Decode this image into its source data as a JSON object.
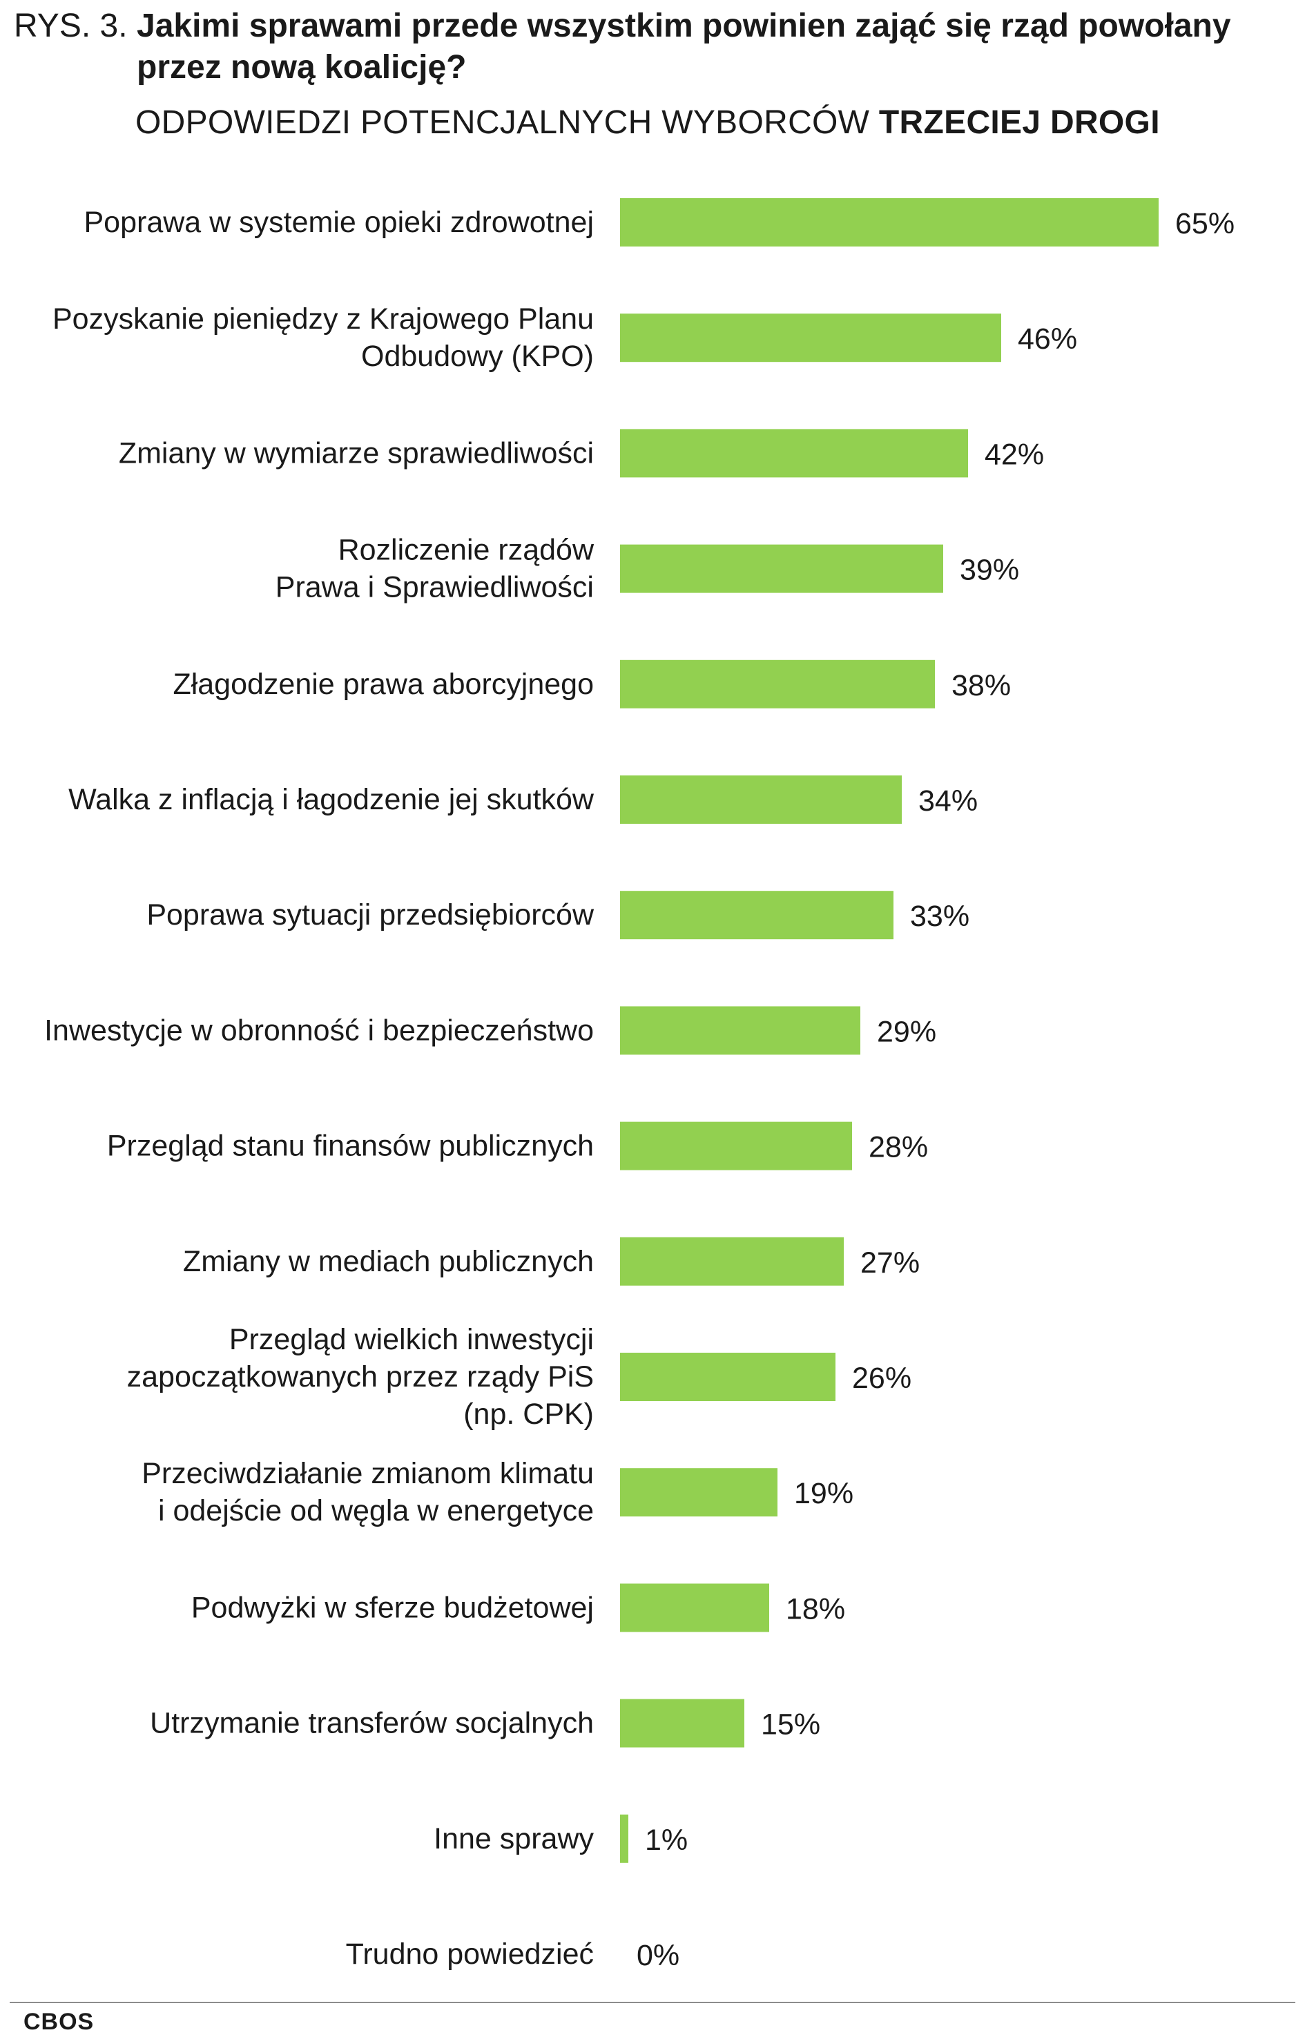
{
  "header": {
    "figure_label": "RYS. 3.",
    "title": "Jakimi sprawami przede wszystkim powinien zająć się rząd powołany przez nową koalicję?",
    "subtitle_prefix": "ODPOWIEDZI POTENCJALNYCH WYBORCÓW ",
    "subtitle_emphasis": "TRZECIEJ DROGI"
  },
  "footer": {
    "source": "CBOS"
  },
  "chart_data": {
    "type": "bar",
    "orientation": "horizontal",
    "categories": [
      [
        "Poprawa w systemie opieki zdrowotnej"
      ],
      [
        "Pozyskanie pieniędzy z Krajowego Planu",
        "Odbudowy (KPO)"
      ],
      [
        "Zmiany w wymiarze sprawiedliwości"
      ],
      [
        "Rozliczenie rządów",
        "Prawa i Sprawiedliwości"
      ],
      [
        "Złagodzenie prawa aborcyjnego"
      ],
      [
        "Walka z inflacją i łagodzenie jej skutków"
      ],
      [
        "Poprawa sytuacji przedsiębiorców"
      ],
      [
        "Inwestycje w obronność i bezpieczeństwo"
      ],
      [
        "Przegląd stanu finansów publicznych"
      ],
      [
        "Zmiany w mediach publicznych"
      ],
      [
        "Przegląd wielkich inwestycji",
        "zapoczątkowanych przez rządy PiS",
        "(np. CPK)"
      ],
      [
        "Przeciwdziałanie zmianom klimatu",
        "i odejście od węgla w energetyce"
      ],
      [
        "Podwyżki w sferze budżetowej"
      ],
      [
        "Utrzymanie transferów socjalnych"
      ],
      [
        "Inne sprawy"
      ],
      [
        "Trudno powiedzieć"
      ]
    ],
    "values": [
      65,
      46,
      42,
      39,
      38,
      34,
      33,
      29,
      28,
      27,
      26,
      19,
      18,
      15,
      1,
      0
    ],
    "value_labels": [
      "65%",
      "46%",
      "42%",
      "39%",
      "38%",
      "34%",
      "33%",
      "29%",
      "28%",
      "27%",
      "26%",
      "19%",
      "18%",
      "15%",
      "1%",
      "0%"
    ],
    "unit": "%",
    "xlim": [
      0,
      65
    ],
    "grid": false,
    "legend": "none",
    "bar_color": "#92d050"
  }
}
